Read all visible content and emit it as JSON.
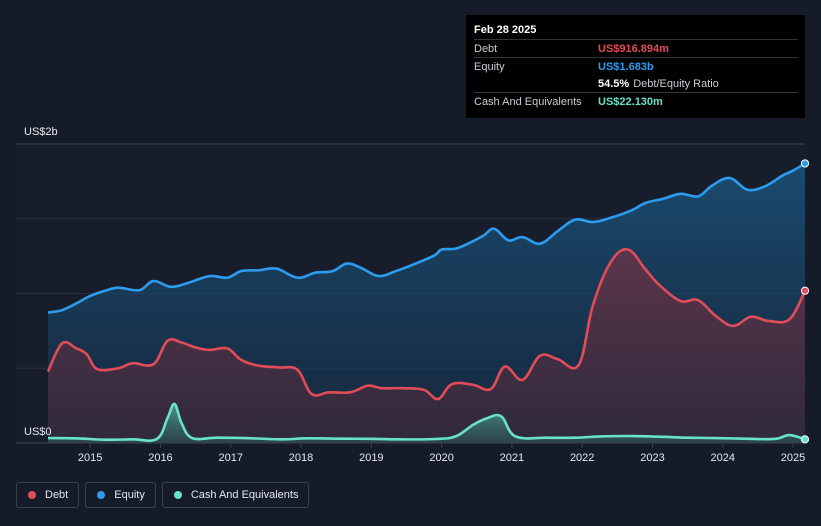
{
  "tooltip": {
    "date": "Feb 28 2025",
    "rows": [
      {
        "label": "Debt",
        "value": "US$916.894m",
        "color": "#e24c58"
      },
      {
        "label": "Equity",
        "value": "US$1.683b",
        "color": "#2d9cef"
      },
      {
        "label": "",
        "value": "54.5%",
        "suffix": "Debt/Equity Ratio",
        "color": "#ffffff"
      },
      {
        "label": "Cash And Equivalents",
        "value": "US$22.130m",
        "color": "#68e3c8"
      }
    ]
  },
  "legend": [
    {
      "name": "Debt",
      "color": "#e24c58"
    },
    {
      "name": "Equity",
      "color": "#2d9cef"
    },
    {
      "name": "Cash And Equivalents",
      "color": "#68e3c8"
    }
  ],
  "chart_data": {
    "type": "area",
    "title": "",
    "xlabel": "",
    "ylabel": "",
    "y_top_label": "US$2b",
    "y_bottom_label": "US$0",
    "ylim": [
      0,
      1800
    ],
    "xlim": [
      2014.4,
      2025.17
    ],
    "x_ticks": [
      "2015",
      "2016",
      "2017",
      "2018",
      "2019",
      "2020",
      "2021",
      "2022",
      "2023",
      "2024",
      "2025"
    ],
    "grid": true,
    "legend_position": "bottom-left",
    "series": [
      {
        "name": "Equity",
        "color": "#2d9cef",
        "points": [
          [
            2014.4,
            785
          ],
          [
            2014.6,
            800
          ],
          [
            2014.8,
            840
          ],
          [
            2015.0,
            885
          ],
          [
            2015.2,
            915
          ],
          [
            2015.4,
            935
          ],
          [
            2015.7,
            920
          ],
          [
            2015.9,
            975
          ],
          [
            2016.15,
            940
          ],
          [
            2016.4,
            965
          ],
          [
            2016.7,
            1005
          ],
          [
            2016.95,
            995
          ],
          [
            2017.15,
            1035
          ],
          [
            2017.4,
            1040
          ],
          [
            2017.65,
            1050
          ],
          [
            2017.95,
            995
          ],
          [
            2018.2,
            1025
          ],
          [
            2018.45,
            1035
          ],
          [
            2018.65,
            1080
          ],
          [
            2018.85,
            1055
          ],
          [
            2019.1,
            1005
          ],
          [
            2019.35,
            1035
          ],
          [
            2019.6,
            1075
          ],
          [
            2019.9,
            1130
          ],
          [
            2020.0,
            1165
          ],
          [
            2020.2,
            1170
          ],
          [
            2020.4,
            1205
          ],
          [
            2020.6,
            1250
          ],
          [
            2020.75,
            1290
          ],
          [
            2020.95,
            1220
          ],
          [
            2021.15,
            1240
          ],
          [
            2021.4,
            1200
          ],
          [
            2021.65,
            1275
          ],
          [
            2021.9,
            1345
          ],
          [
            2022.15,
            1330
          ],
          [
            2022.4,
            1355
          ],
          [
            2022.7,
            1400
          ],
          [
            2022.9,
            1445
          ],
          [
            2023.15,
            1470
          ],
          [
            2023.4,
            1500
          ],
          [
            2023.65,
            1485
          ],
          [
            2023.85,
            1550
          ],
          [
            2024.1,
            1595
          ],
          [
            2024.35,
            1525
          ],
          [
            2024.6,
            1545
          ],
          [
            2024.85,
            1610
          ],
          [
            2025.0,
            1640
          ],
          [
            2025.17,
            1683
          ]
        ]
      },
      {
        "name": "Debt",
        "color": "#e24c58",
        "points": [
          [
            2014.4,
            430
          ],
          [
            2014.6,
            600
          ],
          [
            2014.8,
            570
          ],
          [
            2014.95,
            535
          ],
          [
            2015.1,
            445
          ],
          [
            2015.4,
            450
          ],
          [
            2015.6,
            480
          ],
          [
            2015.9,
            475
          ],
          [
            2016.1,
            615
          ],
          [
            2016.3,
            605
          ],
          [
            2016.5,
            575
          ],
          [
            2016.7,
            560
          ],
          [
            2016.95,
            570
          ],
          [
            2017.15,
            500
          ],
          [
            2017.4,
            465
          ],
          [
            2017.7,
            455
          ],
          [
            2017.95,
            440
          ],
          [
            2018.15,
            295
          ],
          [
            2018.4,
            305
          ],
          [
            2018.7,
            305
          ],
          [
            2018.95,
            345
          ],
          [
            2019.15,
            330
          ],
          [
            2019.45,
            330
          ],
          [
            2019.75,
            320
          ],
          [
            2019.95,
            265
          ],
          [
            2020.15,
            355
          ],
          [
            2020.45,
            350
          ],
          [
            2020.7,
            325
          ],
          [
            2020.9,
            460
          ],
          [
            2021.15,
            380
          ],
          [
            2021.4,
            525
          ],
          [
            2021.65,
            505
          ],
          [
            2021.95,
            470
          ],
          [
            2022.15,
            825
          ],
          [
            2022.4,
            1085
          ],
          [
            2022.65,
            1165
          ],
          [
            2022.9,
            1045
          ],
          [
            2023.1,
            950
          ],
          [
            2023.4,
            855
          ],
          [
            2023.65,
            860
          ],
          [
            2023.9,
            765
          ],
          [
            2024.15,
            705
          ],
          [
            2024.4,
            760
          ],
          [
            2024.65,
            735
          ],
          [
            2024.95,
            745
          ],
          [
            2025.17,
            917
          ]
        ]
      },
      {
        "name": "Cash And Equivalents",
        "color": "#68e3c8",
        "points": [
          [
            2014.4,
            30
          ],
          [
            2014.8,
            28
          ],
          [
            2015.2,
            20
          ],
          [
            2015.6,
            22
          ],
          [
            2015.95,
            25
          ],
          [
            2016.1,
            150
          ],
          [
            2016.2,
            235
          ],
          [
            2016.3,
            120
          ],
          [
            2016.45,
            30
          ],
          [
            2016.8,
            32
          ],
          [
            2017.2,
            30
          ],
          [
            2017.7,
            22
          ],
          [
            2018.1,
            28
          ],
          [
            2018.6,
            26
          ],
          [
            2019.0,
            25
          ],
          [
            2019.4,
            22
          ],
          [
            2019.9,
            24
          ],
          [
            2020.2,
            40
          ],
          [
            2020.45,
            110
          ],
          [
            2020.65,
            150
          ],
          [
            2020.85,
            160
          ],
          [
            2021.05,
            40
          ],
          [
            2021.5,
            32
          ],
          [
            2021.9,
            32
          ],
          [
            2022.3,
            40
          ],
          [
            2022.7,
            42
          ],
          [
            2023.1,
            38
          ],
          [
            2023.5,
            32
          ],
          [
            2023.9,
            30
          ],
          [
            2024.4,
            25
          ],
          [
            2024.75,
            25
          ],
          [
            2024.95,
            48
          ],
          [
            2025.17,
            22
          ]
        ]
      }
    ]
  }
}
